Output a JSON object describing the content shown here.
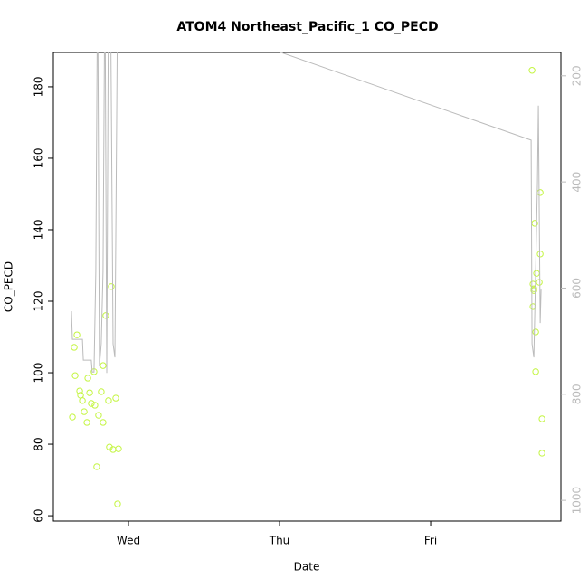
{
  "chart_data": {
    "type": "scatter",
    "title": "ATOM4 Northeast_Pacific_1 CO_PECD",
    "xlabel": "Date",
    "ylabel": "CO_PECD",
    "xlim": [
      -0.497,
      2.862
    ],
    "xticks": [
      {
        "value": 0,
        "label": "Wed"
      },
      {
        "value": 1,
        "label": "Thu"
      },
      {
        "value": 2,
        "label": "Fri"
      }
    ],
    "ylim": [
      58.5,
      189.6
    ],
    "yticks": [
      60,
      80,
      100,
      120,
      140,
      160,
      180
    ],
    "y2lim": [
      1039,
      156
    ],
    "y2ticks": [
      200,
      400,
      600,
      800,
      1000
    ],
    "series": [
      {
        "color": "#c4f542",
        "marker": "circle",
        "x": [
          -0.371,
          -0.359,
          -0.353,
          -0.341,
          -0.323,
          -0.317,
          -0.305,
          -0.293,
          -0.275,
          -0.269,
          -0.257,
          -0.246,
          -0.228,
          -0.222,
          -0.21,
          -0.198,
          -0.18,
          -0.168,
          -0.168,
          -0.15,
          -0.132,
          -0.126,
          -0.114,
          -0.102,
          -0.084,
          -0.066,
          -0.072,
          2.671,
          2.677,
          2.677,
          2.683,
          2.683,
          2.689,
          2.695,
          2.695,
          2.701,
          2.719,
          2.725,
          2.725,
          2.737,
          2.737
        ],
        "values": [
          87.6,
          107.1,
          99.2,
          110.6,
          94.9,
          93.7,
          92.2,
          89.1,
          86.1,
          98.5,
          94.4,
          91.4,
          100.3,
          90.9,
          73.7,
          88.1,
          94.7,
          102.0,
          86.1,
          116.0,
          92.2,
          79.2,
          124.1,
          78.5,
          92.9,
          78.7,
          63.3,
          184.6,
          124.8,
          118.5,
          123.5,
          123.0,
          141.8,
          111.4,
          100.3,
          127.8,
          125.3,
          150.4,
          133.2,
          87.1,
          77.5
        ]
      },
      {
        "color": "#bbbbbb",
        "axis": "y2",
        "kind": "line",
        "x": [
          -0.377,
          -0.371,
          -0.305,
          -0.299,
          -0.246,
          -0.24,
          -0.228,
          -0.216,
          -0.204,
          -0.192,
          -0.18,
          -0.168,
          -0.156,
          -0.144,
          -0.132,
          -0.12,
          -0.102,
          -0.09,
          -0.072,
          2.665,
          2.671,
          2.683,
          2.695,
          2.707,
          2.713,
          2.725,
          2.731
        ],
        "values": [
          643.6,
          696.6,
          696.6,
          735.8,
          735.8,
          758,
          758,
          568.6,
          0,
          747.7,
          705.1,
          568.6,
          0,
          759.7,
          0,
          0,
          705.1,
          730.7,
          48,
          321.1,
          705.1,
          730.7,
          568.6,
          400,
          256.3,
          665.9,
          602.7
        ]
      }
    ]
  }
}
